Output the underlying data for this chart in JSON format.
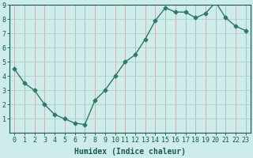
{
  "x": [
    0,
    1,
    2,
    3,
    4,
    5,
    6,
    7,
    8,
    9,
    10,
    11,
    12,
    13,
    14,
    15,
    16,
    17,
    18,
    19,
    20,
    21,
    22,
    23
  ],
  "y": [
    4.5,
    3.5,
    3.0,
    2.0,
    1.3,
    1.0,
    0.7,
    0.6,
    2.3,
    3.0,
    4.0,
    5.0,
    5.5,
    6.6,
    7.9,
    8.8,
    8.5,
    8.5,
    8.1,
    8.4,
    9.2,
    8.1,
    7.5,
    7.2
  ],
  "line_color": "#2d7a6a",
  "marker": "D",
  "marker_size": 2.5,
  "bg_color": "#cdecea",
  "grid_color_x": "#c8adb0",
  "grid_color_y": "#aecfcc",
  "axis_label_color": "#1a5a4a",
  "xlabel": "Humidex (Indice chaleur)",
  "xlim": [
    -0.5,
    23.5
  ],
  "ylim": [
    0,
    9
  ],
  "yticks": [
    1,
    2,
    3,
    4,
    5,
    6,
    7,
    8,
    9
  ],
  "xticks": [
    0,
    1,
    2,
    3,
    4,
    5,
    6,
    7,
    8,
    9,
    10,
    11,
    12,
    13,
    14,
    15,
    16,
    17,
    18,
    19,
    20,
    21,
    22,
    23
  ],
  "xlabel_fontsize": 7,
  "tick_fontsize": 6,
  "line_width": 1.0
}
